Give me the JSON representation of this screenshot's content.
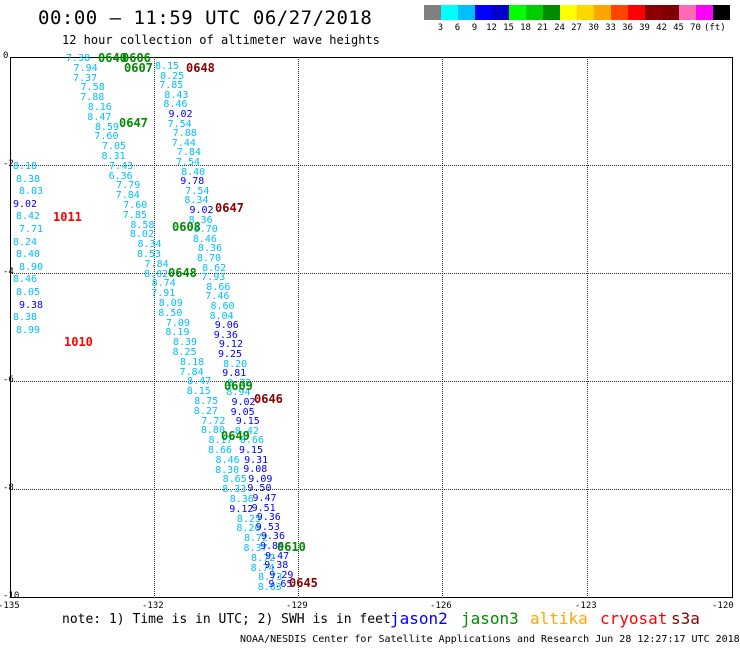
{
  "header": {
    "title": "00:00 – 11:59 UTC 06/27/2018",
    "subtitle": "12 hour collection of altimeter wave heights"
  },
  "colorbar": {
    "swatches": [
      "#808080",
      "#00ffff",
      "#00bfff",
      "#0000ff",
      "#0000cd",
      "#00ff00",
      "#00cd00",
      "#008b00",
      "#ffff00",
      "#ffd700",
      "#ffa500",
      "#ff4500",
      "#ff0000",
      "#8b0000",
      "#800000",
      "#ff69b4",
      "#ff00ff",
      "#000000"
    ],
    "labels": [
      "3",
      "6",
      "9",
      "12",
      "15",
      "18",
      "21",
      "24",
      "27",
      "30",
      "33",
      "36",
      "39",
      "42",
      "45",
      "70",
      "(ft)"
    ]
  },
  "axes": {
    "x_ticks": [
      "-135",
      "-132",
      "-129",
      "-126",
      "-123",
      "-120"
    ],
    "y_ticks": [
      "0",
      "-2",
      "-4",
      "-6",
      "-8",
      "-10"
    ]
  },
  "observations": [
    {
      "t": "7.38",
      "c": "#00bfff"
    },
    {
      "t": "7.94",
      "c": "#00bfff"
    },
    {
      "t": "7.37",
      "c": "#00bfff"
    },
    {
      "t": "7.58",
      "c": "#00bfff"
    },
    {
      "t": "7.88",
      "c": "#00bfff"
    },
    {
      "t": "8.16",
      "c": "#00bfff"
    },
    {
      "t": "8.47",
      "c": "#00bfff"
    },
    {
      "t": "8.59",
      "c": "#00bfff"
    },
    {
      "t": "7.60",
      "c": "#00bfff"
    },
    {
      "t": "7.05",
      "c": "#00bfff"
    },
    {
      "t": "8.31",
      "c": "#00bfff"
    },
    {
      "t": "7.43",
      "c": "#00bfff"
    },
    {
      "t": "6.36",
      "c": "#00bfff"
    },
    {
      "t": "7.79",
      "c": "#00bfff"
    },
    {
      "t": "7.84",
      "c": "#00bfff"
    },
    {
      "t": "7.60",
      "c": "#00bfff"
    },
    {
      "t": "7.85",
      "c": "#00bfff"
    },
    {
      "t": "8.58",
      "c": "#00bfff"
    },
    {
      "t": "8.02",
      "c": "#00bfff"
    },
    {
      "t": "8.34",
      "c": "#00bfff"
    },
    {
      "t": "8.53",
      "c": "#00bfff"
    },
    {
      "t": "7.84",
      "c": "#00bfff"
    },
    {
      "t": "8.02",
      "c": "#00bfff"
    },
    {
      "t": "8.74",
      "c": "#00bfff"
    },
    {
      "t": "7.91",
      "c": "#00bfff"
    },
    {
      "t": "8.09",
      "c": "#00bfff"
    },
    {
      "t": "8.50",
      "c": "#00bfff"
    },
    {
      "t": "7.09",
      "c": "#00bfff"
    },
    {
      "t": "8.19",
      "c": "#00bfff"
    },
    {
      "t": "8.39",
      "c": "#00bfff"
    },
    {
      "t": "8.25",
      "c": "#00bfff"
    },
    {
      "t": "8.18",
      "c": "#00bfff"
    },
    {
      "t": "7.84",
      "c": "#00bfff"
    },
    {
      "t": "8.47",
      "c": "#00bfff"
    },
    {
      "t": "8.15",
      "c": "#00bfff"
    },
    {
      "t": "8.75",
      "c": "#00bfff"
    },
    {
      "t": "8.27",
      "c": "#00bfff"
    },
    {
      "t": "7.72",
      "c": "#00bfff"
    },
    {
      "t": "8.80",
      "c": "#00bfff"
    },
    {
      "t": "8.17",
      "c": "#00bfff"
    },
    {
      "t": "8.66",
      "c": "#00bfff"
    },
    {
      "t": "8.46",
      "c": "#00bfff"
    },
    {
      "t": "8.30",
      "c": "#00bfff"
    },
    {
      "t": "8.65",
      "c": "#00bfff"
    },
    {
      "t": "8.33",
      "c": "#00bfff"
    },
    {
      "t": "8.36",
      "c": "#00bfff"
    },
    {
      "t": "9.12",
      "c": "#0000ff"
    },
    {
      "t": "8.25",
      "c": "#00bfff"
    },
    {
      "t": "8.20",
      "c": "#00bfff"
    },
    {
      "t": "8.72",
      "c": "#00bfff"
    },
    {
      "t": "8.37",
      "c": "#00bfff"
    },
    {
      "t": "8.72",
      "c": "#00bfff"
    },
    {
      "t": "8.74",
      "c": "#00bfff"
    },
    {
      "t": "8.73",
      "c": "#00bfff"
    },
    {
      "t": "8.83",
      "c": "#00bfff"
    },
    {
      "t": "8.15",
      "c": "#00bfff"
    },
    {
      "t": "8.25",
      "c": "#00bfff"
    },
    {
      "t": "7.85",
      "c": "#00bfff"
    },
    {
      "t": "8.43",
      "c": "#00bfff"
    },
    {
      "t": "8.46",
      "c": "#00bfff"
    },
    {
      "t": "9.02",
      "c": "#0000ff"
    },
    {
      "t": "7.54",
      "c": "#00bfff"
    },
    {
      "t": "7.88",
      "c": "#00bfff"
    },
    {
      "t": "7.44",
      "c": "#00bfff"
    },
    {
      "t": "7.84",
      "c": "#00bfff"
    },
    {
      "t": "7.54",
      "c": "#00bfff"
    },
    {
      "t": "8.40",
      "c": "#00bfff"
    },
    {
      "t": "9.78",
      "c": "#0000ff"
    },
    {
      "t": "7.54",
      "c": "#00bfff"
    },
    {
      "t": "8.34",
      "c": "#00bfff"
    },
    {
      "t": "9.02",
      "c": "#0000ff"
    },
    {
      "t": "8.36",
      "c": "#00bfff"
    },
    {
      "t": "8.70",
      "c": "#00bfff"
    },
    {
      "t": "8.46",
      "c": "#00bfff"
    },
    {
      "t": "8.36",
      "c": "#00bfff"
    },
    {
      "t": "8.70",
      "c": "#00bfff"
    },
    {
      "t": "8.62",
      "c": "#00bfff"
    },
    {
      "t": "7.93",
      "c": "#00bfff"
    },
    {
      "t": "8.66",
      "c": "#00bfff"
    },
    {
      "t": "7.46",
      "c": "#00bfff"
    },
    {
      "t": "8.60",
      "c": "#00bfff"
    },
    {
      "t": "8.04",
      "c": "#00bfff"
    },
    {
      "t": "9.06",
      "c": "#0000ff"
    },
    {
      "t": "9.36",
      "c": "#0000ff"
    },
    {
      "t": "9.12",
      "c": "#0000ff"
    },
    {
      "t": "9.25",
      "c": "#0000ff"
    },
    {
      "t": "8.20",
      "c": "#00bfff"
    },
    {
      "t": "9.81",
      "c": "#0000ff"
    },
    {
      "t": "8.72",
      "c": "#00bfff"
    },
    {
      "t": "8.94",
      "c": "#00bfff"
    },
    {
      "t": "9.02",
      "c": "#0000ff"
    },
    {
      "t": "9.05",
      "c": "#0000ff"
    },
    {
      "t": "9.15",
      "c": "#0000ff"
    },
    {
      "t": "8.42",
      "c": "#00bfff"
    },
    {
      "t": "8.66",
      "c": "#00bfff"
    },
    {
      "t": "9.15",
      "c": "#0000ff"
    },
    {
      "t": "9.31",
      "c": "#0000ff"
    },
    {
      "t": "9.08",
      "c": "#0000ff"
    },
    {
      "t": "9.09",
      "c": "#0000ff"
    },
    {
      "t": "9.50",
      "c": "#0000ff"
    },
    {
      "t": "9.47",
      "c": "#0000ff"
    },
    {
      "t": "9.51",
      "c": "#0000ff"
    },
    {
      "t": "9.36",
      "c": "#0000ff"
    },
    {
      "t": "9.53",
      "c": "#0000ff"
    },
    {
      "t": "9.36",
      "c": "#0000ff"
    },
    {
      "t": "9.84",
      "c": "#0000ff"
    },
    {
      "t": "9.47",
      "c": "#0000ff"
    },
    {
      "t": "9.38",
      "c": "#0000ff"
    },
    {
      "t": "9.29",
      "c": "#0000ff"
    },
    {
      "t": "9.65",
      "c": "#0000ff"
    },
    {
      "t": "8.18",
      "c": "#00bfff"
    },
    {
      "t": "8.38",
      "c": "#00bfff"
    },
    {
      "t": "8.03",
      "c": "#00bfff"
    },
    {
      "t": "9.02",
      "c": "#0000ff"
    },
    {
      "t": "8.42",
      "c": "#00bfff"
    },
    {
      "t": "7.71",
      "c": "#00bfff"
    },
    {
      "t": "8.24",
      "c": "#00bfff"
    },
    {
      "t": "8.40",
      "c": "#00bfff"
    },
    {
      "t": "8.90",
      "c": "#00bfff"
    },
    {
      "t": "8.46",
      "c": "#00bfff"
    },
    {
      "t": "8.05",
      "c": "#00bfff"
    },
    {
      "t": "9.38",
      "c": "#0000ff"
    },
    {
      "t": "8.38",
      "c": "#00bfff"
    },
    {
      "t": "8.99",
      "c": "#00bfff"
    }
  ],
  "pass_times": [
    {
      "t": "0640",
      "c": "#008b00"
    },
    {
      "t": "0606",
      "c": "#008b00"
    },
    {
      "t": "0607",
      "c": "#008b00"
    },
    {
      "t": "0648",
      "c": "#8b0000"
    },
    {
      "t": "0647",
      "c": "#008b00"
    },
    {
      "t": "0647",
      "c": "#8b0000"
    },
    {
      "t": "0608",
      "c": "#008b00"
    },
    {
      "t": "0648",
      "c": "#008b00"
    },
    {
      "t": "0609",
      "c": "#008b00"
    },
    {
      "t": "0646",
      "c": "#8b0000"
    },
    {
      "t": "0649",
      "c": "#008b00"
    },
    {
      "t": "0610",
      "c": "#008b00"
    },
    {
      "t": "0645",
      "c": "#8b0000"
    },
    {
      "t": "1011",
      "c": "#ff0000"
    },
    {
      "t": "1010",
      "c": "#ff0000"
    }
  ],
  "footer": {
    "note": "note: 1) Time is in UTC; 2) SWH is in feet",
    "legend": [
      {
        "name": "jason2",
        "color": "#0000ff"
      },
      {
        "name": "jason3",
        "color": "#008b00"
      },
      {
        "name": "altika",
        "color": "#ffa500"
      },
      {
        "name": "cryosat",
        "color": "#ff0000"
      },
      {
        "name": "s3a",
        "color": "#8b0000"
      }
    ],
    "credit": "NOAA/NESDIS Center for Satellite Applications and Research   Jun 28 12:27:17 UTC 2018"
  }
}
